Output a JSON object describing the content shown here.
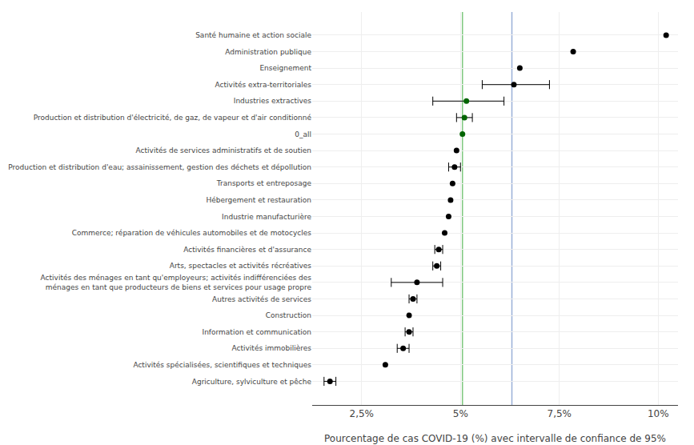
{
  "chart_data": {
    "type": "dot",
    "orientation": "horizontal",
    "categories": [
      "Santé humaine et action sociale",
      "Administration publique",
      "Enseignement",
      "Activités extra-territoriales",
      "Industries extractives",
      "Production et distribution d'électricité, de gaz, de vapeur et d'air conditionné",
      "0_all",
      "Activités de services administratifs et de soutien",
      "Production et distribution d'eau; assainissement, gestion des déchets et dépollution",
      "Transports et entreposage",
      "Hébergement et restauration",
      "Industrie manufacturière",
      "Commerce; réparation de véhicules automobiles et de motocycles",
      "Activités financières et d'assurance",
      "Arts, spectacles et activités récréatives",
      "Activités des ménages en tant qu'employeurs; activités indifférenciées des\nménages en tant que producteurs de biens et services pour usage propre",
      "Autres activités de services",
      "Construction",
      "Information et communication",
      "Activités immobilières",
      "Activités spécialisées, scientifiques et techniques",
      "Agriculture, sylviculture et pêche"
    ],
    "values": [
      10.2,
      7.85,
      6.5,
      6.35,
      5.15,
      5.1,
      5.05,
      4.9,
      4.85,
      4.8,
      4.75,
      4.7,
      4.6,
      4.45,
      4.4,
      3.9,
      3.8,
      3.7,
      3.7,
      3.55,
      3.1,
      1.7
    ],
    "ci_low": [
      10.2,
      7.85,
      6.5,
      5.55,
      4.3,
      4.9,
      5.05,
      4.9,
      4.7,
      4.8,
      4.75,
      4.7,
      4.6,
      4.35,
      4.3,
      3.25,
      3.7,
      3.7,
      3.6,
      3.4,
      3.1,
      1.55
    ],
    "ci_high": [
      10.2,
      7.85,
      6.5,
      7.25,
      6.1,
      5.3,
      5.05,
      4.9,
      5.0,
      4.8,
      4.75,
      4.7,
      4.6,
      4.55,
      4.5,
      4.55,
      3.9,
      3.7,
      3.8,
      3.7,
      3.1,
      1.85
    ],
    "colors": [
      "black",
      "black",
      "black",
      "black",
      "darkgreen",
      "darkgreen",
      "darkgreen",
      "black",
      "black",
      "black",
      "black",
      "black",
      "black",
      "black",
      "black",
      "black",
      "black",
      "black",
      "black",
      "black",
      "black",
      "black"
    ],
    "color": "black",
    "reference_lines": [
      {
        "value": 5.05,
        "color": "#7ec87e"
      },
      {
        "value": 6.3,
        "color": "#9ab0d8"
      }
    ],
    "xlabel": "Pourcentage de cas COVID-19 (%) avec intervalle de confiance de 95%",
    "xlim": [
      1.25,
      10.5
    ],
    "xticks": [
      {
        "value": 2.5,
        "label": "2,5%"
      },
      {
        "value": 5.0,
        "label": "5%"
      },
      {
        "value": 7.5,
        "label": "7,5%"
      },
      {
        "value": 10.0,
        "label": "10%"
      }
    ],
    "grid": true
  }
}
